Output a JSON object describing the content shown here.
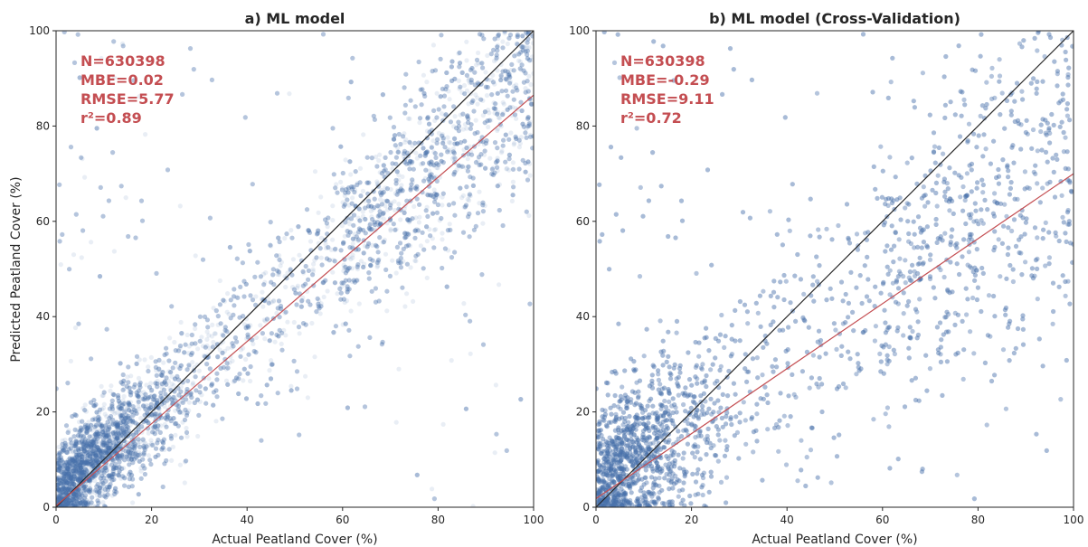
{
  "chart_data": [
    {
      "type": "scatter",
      "title": "a) ML model",
      "xlabel": "Actual Peatland Cover (%)",
      "ylabel": "Predicted Peatland Cover (%)",
      "xlim": [
        0,
        100
      ],
      "ylim": [
        0,
        100
      ],
      "xticks": [
        "0",
        "20",
        "40",
        "60",
        "80",
        "100"
      ],
      "yticks": [
        "0",
        "20",
        "40",
        "60",
        "80",
        "100"
      ],
      "grid": false,
      "point_color": "#4c72b0",
      "stats": [
        {
          "label": "N",
          "value": "630398",
          "text": "N=630398"
        },
        {
          "label": "MBE",
          "value": "0.02",
          "text": "MBE=0.02"
        },
        {
          "label": "RMSE",
          "value": "5.77",
          "text": "RMSE=5.77"
        },
        {
          "label": "r2",
          "value": "0.89",
          "text": "r²=0.89"
        }
      ],
      "stats_color": "#c44e52",
      "identity_line": {
        "x": [
          0,
          100
        ],
        "y": [
          0,
          100
        ],
        "color": "#262626"
      },
      "fit_line": {
        "x": [
          0,
          100
        ],
        "y": [
          0.3,
          86.5
        ],
        "color": "#c44e52"
      },
      "point_cloud": {
        "slope": 0.86,
        "intercept": 3,
        "spread": 7.5,
        "representative_points": 9000
      }
    },
    {
      "type": "scatter",
      "title": "b) ML model (Cross-Validation)",
      "xlabel": "Actual Peatland Cover (%)",
      "ylabel": "",
      "xlim": [
        0,
        100
      ],
      "ylim": [
        0,
        100
      ],
      "xticks": [
        "0",
        "20",
        "40",
        "60",
        "80",
        "100"
      ],
      "yticks": [
        "0",
        "20",
        "40",
        "60",
        "80",
        "100"
      ],
      "grid": false,
      "point_color": "#4c72b0",
      "stats": [
        {
          "label": "N",
          "value": "630398",
          "text": "N=630398"
        },
        {
          "label": "MBE",
          "value": "-0.29",
          "text": "MBE=-0.29"
        },
        {
          "label": "RMSE",
          "value": "9.11",
          "text": "RMSE=9.11"
        },
        {
          "label": "r2",
          "value": "0.72",
          "text": "r²=0.72"
        }
      ],
      "stats_color": "#c44e52",
      "identity_line": {
        "x": [
          0,
          100
        ],
        "y": [
          0,
          100
        ],
        "color": "#262626"
      },
      "fit_line": {
        "x": [
          0,
          100
        ],
        "y": [
          1.8,
          70
        ],
        "color": "#c44e52"
      },
      "point_cloud": {
        "slope": 0.68,
        "intercept": 5,
        "spread": 12,
        "representative_points": 9000
      }
    }
  ]
}
